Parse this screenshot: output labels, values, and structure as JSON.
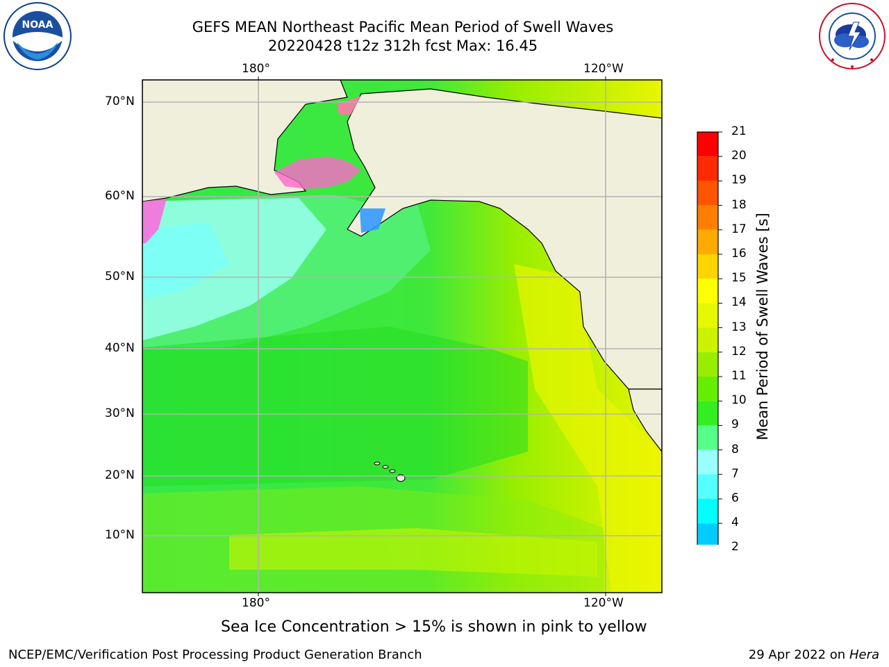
{
  "header": {
    "title_line1": "GEFS MEAN Northeast Pacific Mean Period of Swell Waves",
    "title_line2": "20220428 t12z 312h fcst   Max: 16.45"
  },
  "logos": {
    "noaa_text": "NOAA",
    "noaa_ring_top": "NATIONAL OCEANIC AND ATMOSPHERIC ADMINISTRATION",
    "noaa_ring_bottom": "U.S. DEPARTMENT OF COMMERCE",
    "nws_ring": "NATIONAL WEATHER SERVICE"
  },
  "map": {
    "top_lon_labels": [
      "180°",
      "120°W"
    ],
    "bottom_lon_labels": [
      "180°",
      "120°W"
    ],
    "lat_labels": [
      "70°N",
      "60°N",
      "50°N",
      "40°N",
      "30°N",
      "20°N",
      "10°N"
    ]
  },
  "colorbar": {
    "label": "Mean Period of Swell Waves [s]",
    "ticks": [
      "21",
      "20",
      "19",
      "18",
      "17",
      "16",
      "15",
      "14",
      "13",
      "12",
      "11",
      "10",
      "9",
      "8",
      "7",
      "6",
      "4",
      "2"
    ],
    "colors": [
      "#ff0000",
      "#ff2a00",
      "#ff5500",
      "#ff7f00",
      "#ffaa00",
      "#ffd400",
      "#ffff00",
      "#e5f900",
      "#ccf200",
      "#99ee00",
      "#66ee00",
      "#33ee22",
      "#55ff88",
      "#99ffff",
      "#55ffff",
      "#00ffff",
      "#00ccff",
      "#0077ff"
    ],
    "extend_color": "#0000ff"
  },
  "footer": {
    "note": "Sea Ice Concentration > 15% is shown in pink to yellow",
    "credit": "NCEP/EMC/Verification Post Processing Product Generation Branch",
    "date": "29 Apr 2022 on ",
    "machine": "Hera"
  }
}
